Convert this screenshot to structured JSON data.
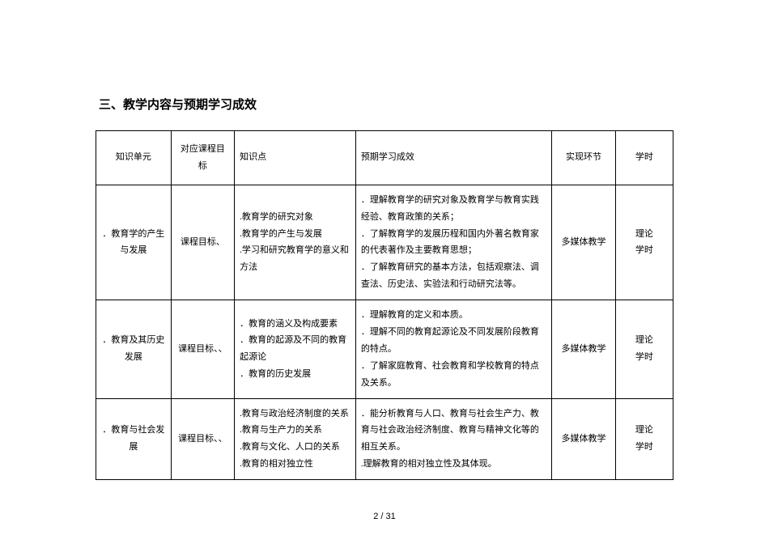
{
  "section_title": "三、教学内容与预期学习成效",
  "table": {
    "type": "table",
    "background_color": "#ffffff",
    "border_color": "#000000",
    "font_size_pt": 8,
    "line_height": 1.9,
    "columns": [
      {
        "key": "unit",
        "label": "知识单元",
        "width_pct": 13,
        "align": "center"
      },
      {
        "key": "target",
        "label": "对应课程目标",
        "width_pct": 11,
        "align": "center"
      },
      {
        "key": "points",
        "label": "知识点",
        "width_pct": 21,
        "align": "left"
      },
      {
        "key": "outcome",
        "label": "预期学习成效",
        "width_pct": 34,
        "align": "left"
      },
      {
        "key": "impl",
        "label": "实现环节",
        "width_pct": 11,
        "align": "center"
      },
      {
        "key": "hours",
        "label": "学时",
        "width_pct": 10,
        "align": "center"
      }
    ],
    "rows": [
      {
        "unit": "．教育学的产生与发展",
        "target": "课程目标、",
        "points": ".教育学的研究对象\n.教育学的产生与发展\n.学习和研究教育学的意义和方法",
        "outcome": "．理解教育学的研究对象及教育学与教育实践经验、教育政策的关系；\n．了解教育学的发展历程和国内外著名教育家的代表著作及主要教育思想；\n．了解教育研究的基本方法，包括观察法、调查法、历史法、实验法和行动研究法等。",
        "impl": "多媒体教学",
        "hours": "理论\n学时"
      },
      {
        "unit": "．教育及其历史发展",
        "target": "课程目标、、",
        "points": "．教育的涵义及构成要素\n．教育的起源及不同的教育起源论\n．教育的历史发展",
        "outcome": "．理解教育的定义和本质。\n．理解不同的教育起源论及不同发展阶段教育的特点。\n．了解家庭教育、社会教育和学校教育的特点及关系。",
        "impl": "多媒体教学",
        "hours": "理论\n学时"
      },
      {
        "unit": "．教育与社会发展",
        "target": "课程目标、、",
        "points": ".教育与政治经济制度的关系\n.教育与生产力的关系\n.教育与文化、人口的关系\n.教育的相对独立性",
        "outcome": "．能分析教育与人口、教育与社会生产力、教育与社会政治经济制度、教育与精神文化等的相互关系。\n.理解教育的相对独立性及其体现。",
        "impl": "多媒体教学",
        "hours": "理论\n学时"
      }
    ]
  },
  "footer": {
    "page_current": 2,
    "page_total": 31,
    "separator": " / "
  }
}
